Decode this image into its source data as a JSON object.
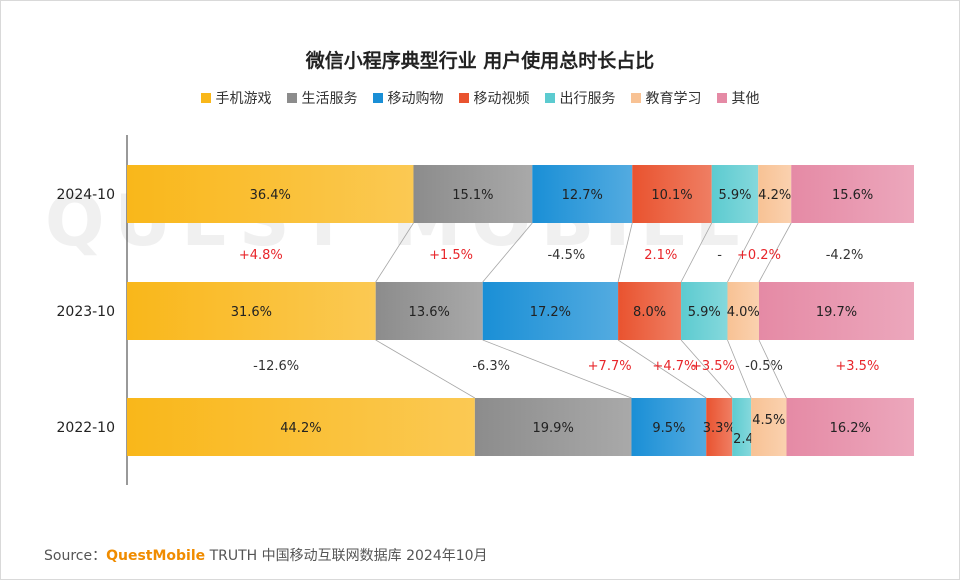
{
  "title": "微信小程序典型行业 用户使用总时长占比",
  "source": {
    "prefix": "Source：",
    "brand": "QuestMobile",
    "rest": " TRUTH 中国移动互联网数据库 2024年10月"
  },
  "watermark": "QUEST MOBILE",
  "chart_data": {
    "type": "bar",
    "stacked": "100%",
    "orientation": "horizontal",
    "title": "微信小程序典型行业 用户使用总时长占比",
    "legend_position": "top",
    "categories": [
      "2024-10",
      "2023-10",
      "2022-10"
    ],
    "series": [
      {
        "name": "手机游戏",
        "color": "#f9b71a",
        "values": [
          36.4,
          31.6,
          44.2
        ],
        "labels": [
          "36.4%",
          "31.6%",
          "44.2%"
        ]
      },
      {
        "name": "生活服务",
        "color": "#8c8c8c",
        "values": [
          15.1,
          13.6,
          19.9
        ],
        "labels": [
          "15.1%",
          "13.6%",
          "19.9%"
        ]
      },
      {
        "name": "移动购物",
        "color": "#1a8fd6",
        "values": [
          12.7,
          17.2,
          9.5
        ],
        "labels": [
          "12.7%",
          "17.2%",
          "9.5%"
        ]
      },
      {
        "name": "移动视频",
        "color": "#e9532f",
        "values": [
          10.1,
          8.0,
          3.3
        ],
        "labels": [
          "10.1%",
          "8.0%",
          "3.3%"
        ]
      },
      {
        "name": "出行服务",
        "color": "#5ccbd0",
        "values": [
          5.9,
          5.9,
          2.4
        ],
        "labels": [
          "5.9%",
          "5.9%",
          "2.4%"
        ]
      },
      {
        "name": "教育学习",
        "color": "#f8c294",
        "values": [
          4.2,
          4.0,
          4.5
        ],
        "labels": [
          "4.2%",
          "4.0%",
          "4.5%"
        ]
      },
      {
        "name": "其他",
        "color": "#e58aa5",
        "values": [
          15.6,
          19.7,
          16.2
        ],
        "labels": [
          "15.6%",
          "19.7%",
          "16.2%"
        ]
      }
    ],
    "changes": [
      {
        "between": [
          "2024-10",
          "2023-10"
        ],
        "values": [
          "+4.8%",
          "+1.5%",
          "-4.5%",
          "2.1%",
          "-",
          "+0.2%",
          "-4.2%"
        ]
      },
      {
        "between": [
          "2023-10",
          "2022-10"
        ],
        "values": [
          "-12.6%",
          "-6.3%",
          "+7.7%",
          "+4.7%",
          "+3.5%",
          "-0.5%",
          "+3.5%"
        ]
      }
    ],
    "change_colors": {
      "up": "#e8252a",
      "down": "#333333"
    }
  }
}
